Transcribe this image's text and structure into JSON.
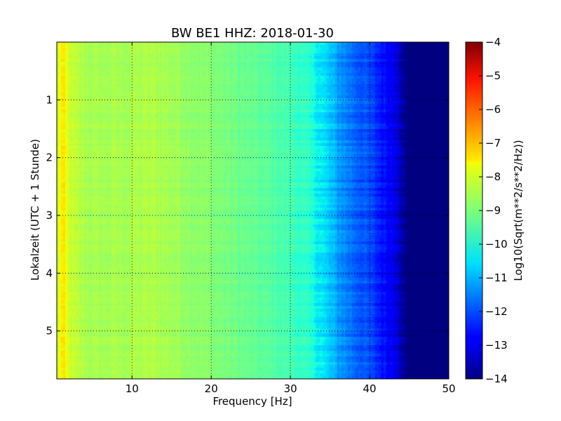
{
  "chart_data": {
    "type": "heatmap",
    "title": "BW BE1 HHZ: 2018-01-30",
    "xlabel": "Frequency [Hz]",
    "ylabel": "Lokalzeit (UTC + 1 Stunde)",
    "xlim": [
      0.5,
      50
    ],
    "ylim": [
      0,
      5.83
    ],
    "y_inverted": true,
    "xticks": [
      10,
      20,
      30,
      40,
      50
    ],
    "xtick_labels": [
      "10",
      "20",
      "30",
      "40",
      "50"
    ],
    "yticks": [
      1,
      2,
      3,
      4,
      5
    ],
    "ytick_labels": [
      "1",
      "2",
      "3",
      "4",
      "5"
    ],
    "grid": true,
    "grid_style": "dotted",
    "colormap": "jet",
    "colorbar": {
      "label": "Log10(Sqrt(m**2/s**2/Hz))",
      "range": [
        -14,
        -4
      ],
      "ticks": [
        -4,
        -5,
        -6,
        -7,
        -8,
        -9,
        -10,
        -11,
        -12,
        -13,
        -14
      ],
      "tick_labels": [
        "−4",
        "−5",
        "−6",
        "−7",
        "−8",
        "−9",
        "−10",
        "−11",
        "−12",
        "−13",
        "−14"
      ]
    },
    "frequency_profile": {
      "frequency_hz": [
        0.5,
        1,
        1.5,
        2,
        3,
        5,
        8,
        10,
        13,
        16,
        20,
        25,
        28,
        30,
        32,
        34,
        36,
        38,
        40,
        42,
        43.5,
        44.5,
        50
      ],
      "log_amplitude": [
        -8.3,
        -7.4,
        -7.5,
        -8.0,
        -8.3,
        -8.5,
        -8.5,
        -8.45,
        -8.4,
        -8.6,
        -8.9,
        -9.3,
        -9.5,
        -9.7,
        -10.0,
        -10.5,
        -11.2,
        -11.7,
        -12.1,
        -12.7,
        -13.1,
        -14.0,
        -14.0
      ]
    }
  }
}
